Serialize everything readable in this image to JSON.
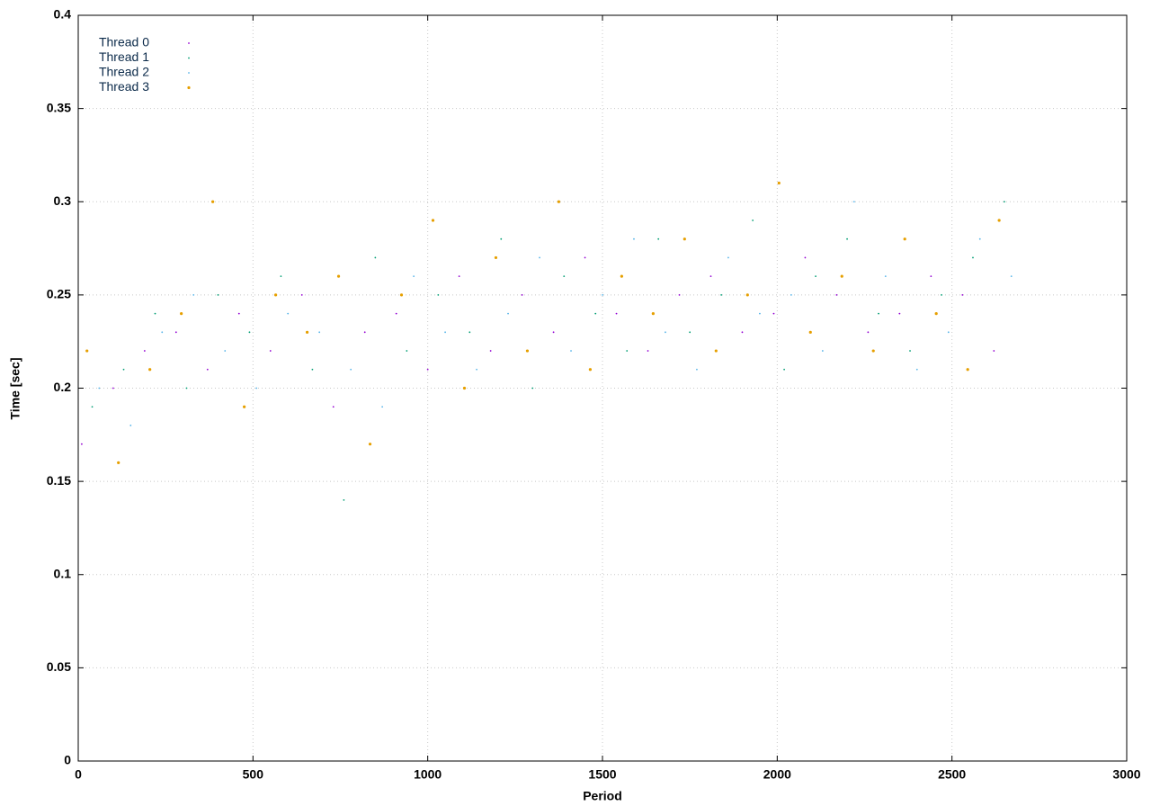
{
  "chart_data": {
    "type": "scatter",
    "xlabel": "Period",
    "ylabel": "Time [sec]",
    "xlim": [
      0,
      3000
    ],
    "xticks": [
      0,
      500,
      1000,
      1500,
      2000,
      2500,
      3000
    ],
    "ylim": [
      0,
      0.4
    ],
    "yticks": [
      0,
      0.05,
      0.1,
      0.15,
      0.2,
      0.25,
      0.3,
      0.35,
      0.4
    ],
    "grid": true,
    "legend": "top left",
    "series": [
      {
        "name": "Thread 0",
        "color": "#9400d3",
        "x": [
          10,
          100,
          190,
          280,
          370,
          460,
          550,
          640,
          730,
          820,
          910,
          1000,
          1090,
          1180,
          1270,
          1360,
          1450,
          1540,
          1630,
          1720,
          1810,
          1900,
          1990,
          2080,
          2170,
          2260,
          2350,
          2440,
          2530,
          2620
        ],
        "values": [
          0.17,
          0.2,
          0.22,
          0.23,
          0.21,
          0.24,
          0.22,
          0.25,
          0.19,
          0.23,
          0.24,
          0.21,
          0.26,
          0.22,
          0.25,
          0.23,
          0.27,
          0.24,
          0.22,
          0.25,
          0.26,
          0.23,
          0.24,
          0.27,
          0.25,
          0.23,
          0.24,
          0.26,
          0.25,
          0.22
        ]
      },
      {
        "name": "Thread 1",
        "color": "#009e73",
        "x": [
          40,
          130,
          220,
          310,
          400,
          490,
          580,
          670,
          760,
          850,
          940,
          1030,
          1120,
          1210,
          1300,
          1390,
          1480,
          1570,
          1660,
          1750,
          1840,
          1930,
          2020,
          2110,
          2200,
          2290,
          2380,
          2470,
          2560,
          2650
        ],
        "values": [
          0.19,
          0.21,
          0.24,
          0.2,
          0.25,
          0.23,
          0.26,
          0.21,
          0.14,
          0.27,
          0.22,
          0.25,
          0.23,
          0.28,
          0.2,
          0.26,
          0.24,
          0.22,
          0.28,
          0.23,
          0.25,
          0.29,
          0.21,
          0.26,
          0.28,
          0.24,
          0.22,
          0.25,
          0.27,
          0.3
        ]
      },
      {
        "name": "Thread 2",
        "color": "#56b4e9",
        "x": [
          60,
          150,
          240,
          330,
          420,
          510,
          600,
          690,
          780,
          870,
          960,
          1050,
          1140,
          1230,
          1320,
          1410,
          1500,
          1590,
          1680,
          1770,
          1860,
          1950,
          2040,
          2130,
          2220,
          2310,
          2400,
          2490,
          2580,
          2670
        ],
        "values": [
          0.2,
          0.18,
          0.23,
          0.25,
          0.22,
          0.2,
          0.24,
          0.23,
          0.21,
          0.19,
          0.26,
          0.23,
          0.21,
          0.24,
          0.27,
          0.22,
          0.25,
          0.28,
          0.23,
          0.21,
          0.27,
          0.24,
          0.25,
          0.22,
          0.3,
          0.26,
          0.21,
          0.23,
          0.28,
          0.26
        ]
      },
      {
        "name": "Thread 3",
        "color": "#e69f00",
        "x": [
          25,
          115,
          205,
          295,
          385,
          475,
          565,
          655,
          745,
          835,
          925,
          1015,
          1105,
          1195,
          1285,
          1375,
          1465,
          1555,
          1645,
          1735,
          1825,
          1915,
          2005,
          2095,
          2185,
          2275,
          2365,
          2455,
          2545,
          2635
        ],
        "values": [
          0.22,
          0.16,
          0.21,
          0.24,
          0.3,
          0.19,
          0.25,
          0.23,
          0.26,
          0.17,
          0.25,
          0.29,
          0.2,
          0.27,
          0.22,
          0.3,
          0.21,
          0.26,
          0.24,
          0.28,
          0.22,
          0.25,
          0.31,
          0.23,
          0.26,
          0.22,
          0.28,
          0.24,
          0.21,
          0.29
        ]
      }
    ]
  }
}
